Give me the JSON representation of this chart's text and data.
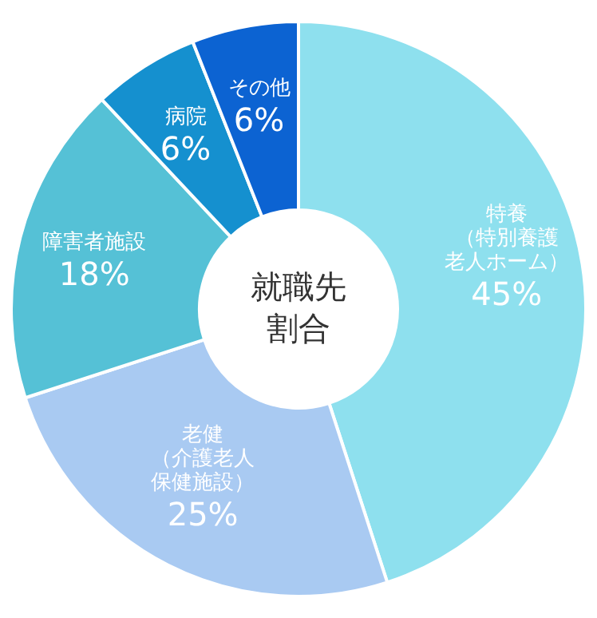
{
  "chart_data": {
    "type": "donut",
    "title": "就職先割合",
    "categories": [
      "特養（特別養護老人ホーム）",
      "老健（介護老人保健施設）",
      "障害者施設",
      "病院",
      "その他"
    ],
    "values": [
      45,
      25,
      18,
      6,
      6
    ],
    "value_labels": [
      "45%",
      "25%",
      "18%",
      "6%",
      "6%"
    ],
    "colors": [
      "#8ee0ee",
      "#a9caf2",
      "#55c1d6",
      "#1590cf",
      "#0c63d2"
    ],
    "legend": false
  }
}
